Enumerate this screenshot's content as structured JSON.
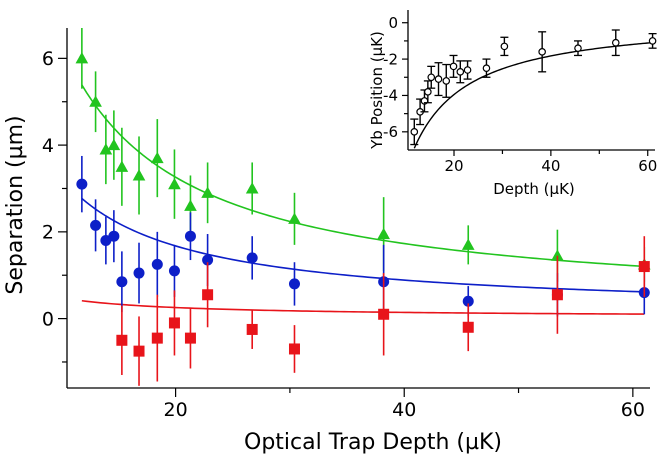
{
  "chart_data": [
    {
      "id": "main",
      "type": "scatter",
      "xlabel": "Optical Trap Depth (µK)",
      "ylabel": "Separation (µm)",
      "xlim": [
        10.5,
        61.5
      ],
      "ylim": [
        -1.6,
        6.7
      ],
      "xticks": [
        20,
        40,
        60
      ],
      "xminor": [
        30,
        50
      ],
      "yticks": [
        0,
        2,
        4,
        6
      ],
      "yminor": [
        -1,
        1,
        3,
        5
      ],
      "grid": false,
      "legend": "none",
      "series": [
        {
          "color": "#22c41f",
          "marker": "triangle",
          "x": [
            11.8,
            13.0,
            13.9,
            14.6,
            15.3,
            16.8,
            18.4,
            19.9,
            21.3,
            22.8,
            26.7,
            30.4,
            38.2,
            45.6,
            53.4,
            61.0
          ],
          "y": [
            6.0,
            5.0,
            3.9,
            4.0,
            3.5,
            3.3,
            3.7,
            3.1,
            2.6,
            2.9,
            3.0,
            2.3,
            1.95,
            1.7,
            1.45,
            1.25
          ],
          "err": [
            0.7,
            0.7,
            0.8,
            0.8,
            0.9,
            0.9,
            0.9,
            0.8,
            0.7,
            0.7,
            0.6,
            0.6,
            0.85,
            0.45,
            0.6,
            0.4
          ],
          "fit": {
            "model": "a/x+b",
            "a": 61.2,
            "b": 0.2
          }
        },
        {
          "color": "#0d1fc8",
          "marker": "circle",
          "x": [
            11.8,
            13.0,
            13.9,
            14.6,
            15.3,
            16.8,
            18.4,
            19.9,
            21.3,
            22.8,
            26.7,
            30.4,
            38.2,
            45.6,
            53.4,
            61.0
          ],
          "y": [
            3.1,
            2.15,
            1.8,
            1.9,
            0.85,
            1.05,
            1.25,
            1.1,
            1.9,
            1.35,
            1.4,
            0.8,
            0.85,
            0.4,
            0.55,
            0.6
          ],
          "err": [
            0.65,
            0.6,
            0.55,
            0.6,
            0.7,
            0.7,
            0.75,
            0.6,
            0.55,
            0.6,
            0.5,
            0.5,
            0.85,
            0.35,
            0.5,
            0.5
          ],
          "fit": {
            "model": "a/x+b",
            "a": 31.5,
            "b": 0.1
          }
        },
        {
          "color": "#e8141a",
          "marker": "square",
          "x": [
            15.3,
            16.8,
            18.4,
            19.9,
            21.3,
            22.8,
            26.7,
            30.4,
            38.2,
            45.6,
            53.4,
            61.0
          ],
          "y": [
            -0.5,
            -0.75,
            -0.45,
            -0.1,
            -0.45,
            0.55,
            -0.25,
            -0.7,
            0.1,
            -0.2,
            0.55,
            1.2
          ],
          "err": [
            0.8,
            0.8,
            1.0,
            0.75,
            0.7,
            0.75,
            0.45,
            0.55,
            0.95,
            0.55,
            0.9,
            0.7
          ],
          "fit": {
            "model": "a/x+b",
            "a": 4.5,
            "b": 0.03
          }
        }
      ]
    },
    {
      "id": "inset",
      "type": "scatter",
      "xlabel": "Depth (µK)",
      "ylabel": "Yb Position (µK)",
      "xlim": [
        10.5,
        61.5
      ],
      "ylim": [
        -7.0,
        0.7
      ],
      "xticks": [
        20,
        40,
        60
      ],
      "xminor": [
        30,
        50
      ],
      "yticks": [
        -6,
        -4,
        -2,
        0
      ],
      "yminor": [
        -5,
        -3,
        -1
      ],
      "grid": false,
      "legend": "none",
      "series": [
        {
          "color": "#000000",
          "marker": "open-circle",
          "x": [
            11.8,
            13.0,
            13.9,
            14.6,
            15.3,
            16.8,
            18.4,
            19.9,
            21.3,
            22.8,
            26.7,
            30.4,
            38.2,
            45.6,
            53.4,
            61.0
          ],
          "y": [
            -6.0,
            -4.9,
            -4.3,
            -3.8,
            -3.0,
            -3.1,
            -3.2,
            -2.4,
            -2.7,
            -2.6,
            -2.5,
            -1.3,
            -1.6,
            -1.4,
            -1.1,
            -1.0
          ],
          "err": [
            0.7,
            0.7,
            0.6,
            0.6,
            0.6,
            0.9,
            0.9,
            0.6,
            0.6,
            0.5,
            0.5,
            0.5,
            1.1,
            0.4,
            0.7,
            0.4
          ],
          "fit": {
            "model": "a/x+b",
            "a": -85.0,
            "b": 0.3
          }
        }
      ]
    }
  ]
}
